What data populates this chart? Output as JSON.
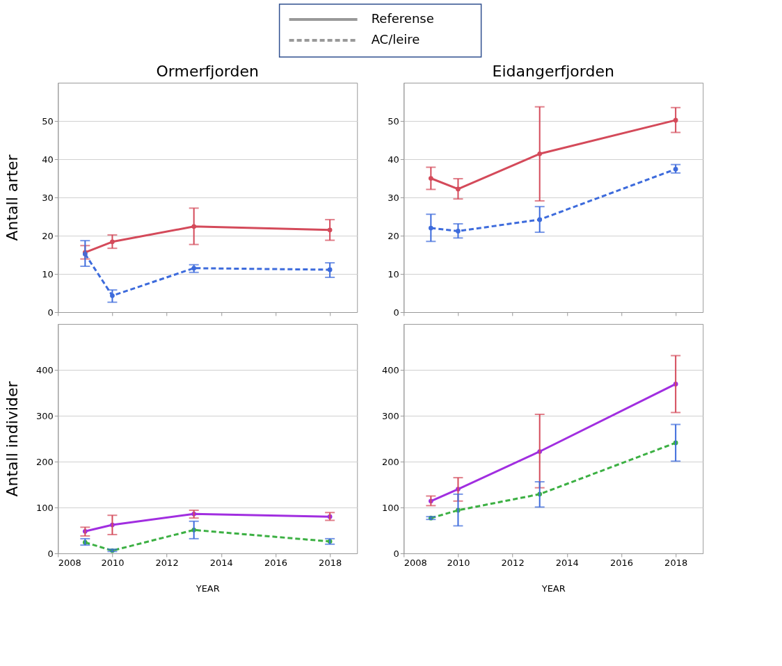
{
  "chart_data": [
    {
      "type": "line",
      "title": "Ormerfjorden",
      "ylabel": "Antall arter",
      "x": [
        2009,
        2010,
        2013,
        2018
      ],
      "xlim": [
        2008,
        2019
      ],
      "xticks": [
        2008,
        2010,
        2012,
        2014,
        2016,
        2018
      ],
      "ylim": [
        0,
        60
      ],
      "yticks": [
        0,
        10,
        20,
        30,
        40,
        50
      ],
      "grid": "y",
      "legend": "top",
      "marker": "circle",
      "tick_labels": "y",
      "series": [
        {
          "name": "Referense",
          "color": "#d44a5a",
          "line_style": "solid",
          "values": [
            15.6,
            18.4,
            22.4,
            21.5
          ],
          "errors": [
            [
              13.9,
              17.4
            ],
            [
              16.7,
              20.2
            ],
            [
              17.7,
              27.2
            ],
            [
              18.8,
              24.2
            ]
          ]
        },
        {
          "name": "AC/leire",
          "color": "#3d6bdc",
          "line_style": "dashed",
          "values": [
            15.2,
            4.3,
            11.5,
            11.1
          ],
          "errors": [
            [
              12.0,
              18.7
            ],
            [
              2.6,
              5.8
            ],
            [
              10.4,
              12.4
            ],
            [
              9.1,
              12.9
            ]
          ]
        }
      ]
    },
    {
      "type": "line",
      "title": "Eidangerfjorden",
      "x": [
        2009,
        2010,
        2013,
        2018
      ],
      "xlim": [
        2008,
        2019
      ],
      "xticks": [
        2008,
        2010,
        2012,
        2014,
        2016,
        2018
      ],
      "ylim": [
        0,
        60
      ],
      "yticks": [
        0,
        10,
        20,
        30,
        40,
        50
      ],
      "grid": "y",
      "marker": "circle",
      "tick_labels": "y",
      "series": [
        {
          "color": "#d44a5a",
          "line_style": "solid",
          "values": [
            35.0,
            32.2,
            41.4,
            50.2
          ],
          "errors": [
            [
              32.1,
              37.9
            ],
            [
              29.6,
              34.9
            ],
            [
              29.1,
              53.7
            ],
            [
              47.0,
              53.5
            ]
          ]
        },
        {
          "color": "#3d6bdc",
          "line_style": "dashed",
          "values": [
            22.0,
            21.2,
            24.2,
            37.4
          ],
          "errors": [
            [
              18.5,
              25.6
            ],
            [
              19.4,
              23.1
            ],
            [
              20.9,
              27.6
            ],
            [
              36.4,
              38.6
            ]
          ]
        }
      ]
    },
    {
      "type": "line",
      "ylabel": "Antall individer",
      "xlabel": "YEAR",
      "x": [
        2009,
        2010,
        2013,
        2018
      ],
      "xlim": [
        2008,
        2019
      ],
      "xticks": [
        2008,
        2010,
        2012,
        2014,
        2016,
        2018
      ],
      "ylim": [
        0,
        500
      ],
      "yticks": [
        0,
        100,
        200,
        300,
        400
      ],
      "grid": "y",
      "marker": "circle",
      "series": [
        {
          "color": "#a12ee0",
          "line_style": "solid",
          "values": [
            48,
            62,
            86,
            80
          ],
          "errors": [
            [
              38,
              57
            ],
            [
              41,
              83
            ],
            [
              77,
              94
            ],
            [
              72,
              89
            ]
          ]
        },
        {
          "color": "#3cb043",
          "line_style": "dashed",
          "values": [
            24,
            6,
            51,
            26
          ],
          "errors": [
            [
              18,
              32
            ],
            [
              4,
              9
            ],
            [
              32,
              70
            ],
            [
              20,
              32
            ]
          ]
        }
      ]
    },
    {
      "type": "line",
      "xlabel": "YEAR",
      "x": [
        2009,
        2010,
        2013,
        2018
      ],
      "xlim": [
        2008,
        2019
      ],
      "xticks": [
        2008,
        2010,
        2012,
        2014,
        2016,
        2018
      ],
      "ylim": [
        0,
        500
      ],
      "yticks": [
        0,
        100,
        200,
        300,
        400
      ],
      "grid": "y",
      "marker": "circle",
      "series": [
        {
          "color": "#a12ee0",
          "line_style": "solid",
          "values": [
            114,
            140,
            222,
            369
          ],
          "errors": [
            [
              104,
              125
            ],
            [
              114,
              165
            ],
            [
              143,
              303
            ],
            [
              307,
              431
            ]
          ]
        },
        {
          "color": "#3cb043",
          "line_style": "dashed",
          "values": [
            77,
            94,
            129,
            241
          ],
          "errors": [
            [
              74,
              80
            ],
            [
              60,
              129
            ],
            [
              101,
              156
            ],
            [
              201,
              281
            ]
          ]
        }
      ]
    }
  ]
}
